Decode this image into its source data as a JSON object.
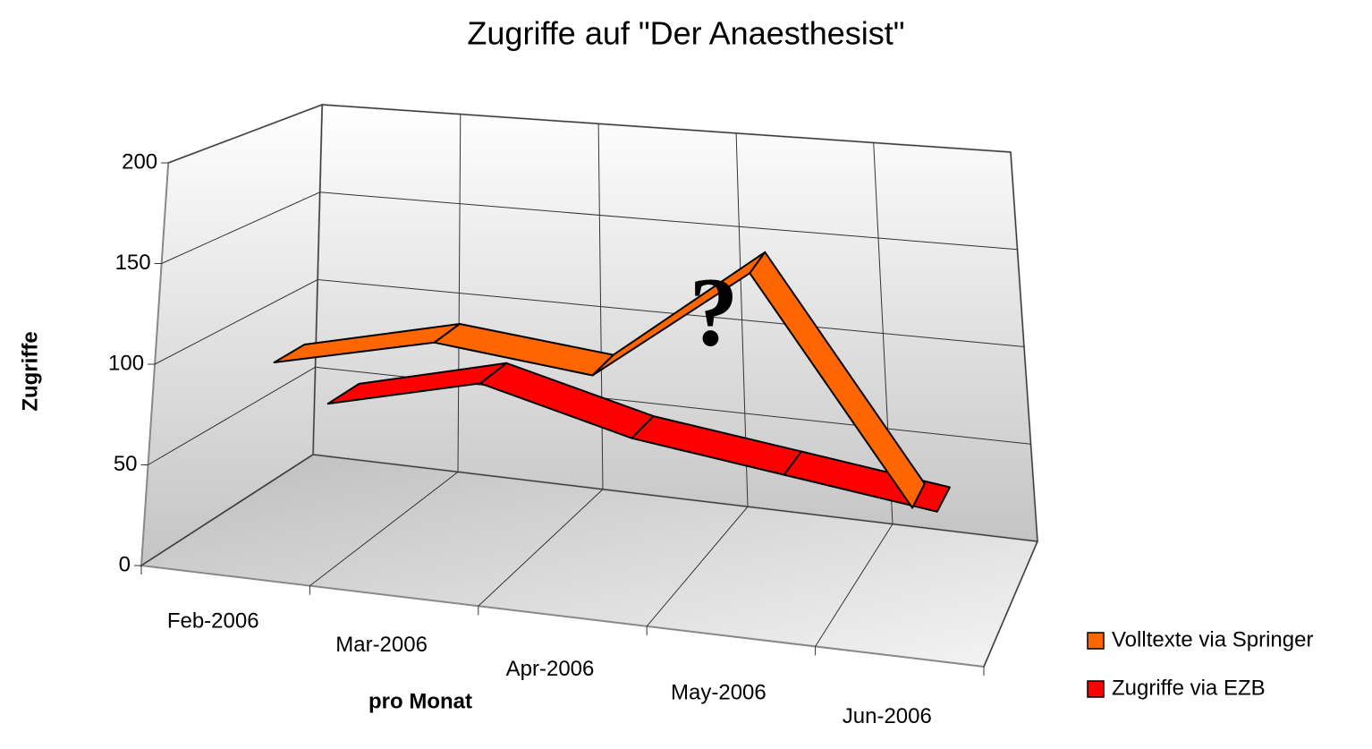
{
  "chart_data": {
    "type": "line3d",
    "title": "Zugriffe auf \"Der Anaesthesist\"",
    "y_label": "Zugriffe",
    "x_label": "pro Monat",
    "categories": [
      "Feb-2006",
      "Mar-2006",
      "Apr-2006",
      "May-2006",
      "Jun-2006"
    ],
    "series": [
      {
        "name": "Volltexte via Springer",
        "color": "#ff6600",
        "values": [
          95,
          115,
          108,
          170,
          60
        ]
      },
      {
        "name": "Zugriffe via EZB",
        "color": "#ff0000",
        "values": [
          55,
          75,
          55,
          45,
          35
        ]
      }
    ],
    "ylim": [
      0,
      200
    ],
    "yticks": [
      0,
      50,
      100,
      150,
      200
    ],
    "grid": true,
    "legend": "right",
    "annotation": "?"
  }
}
